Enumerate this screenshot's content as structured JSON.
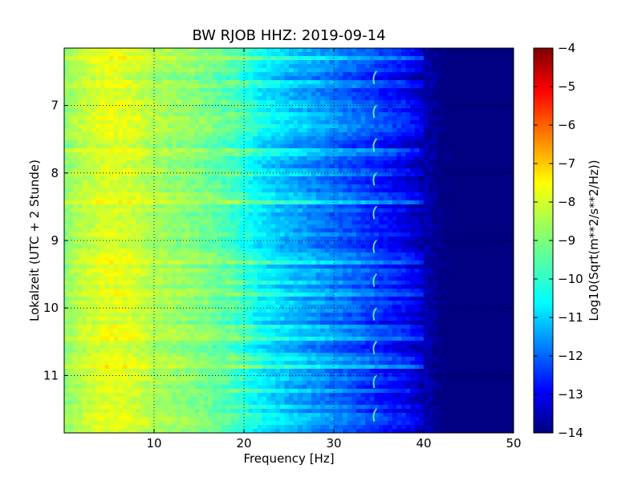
{
  "chart_data": {
    "type": "heatmap",
    "title": "BW RJOB HHZ: 2019-09-14",
    "xlabel": "Frequency [Hz]",
    "ylabel": "Lokalzeit (UTC + 2 Stunde)",
    "xlim": [
      0,
      50
    ],
    "ylim": [
      6.15,
      11.85
    ],
    "y_inverted": true,
    "x_ticks": [
      10,
      20,
      30,
      40,
      50
    ],
    "x_tick_labels": [
      "10",
      "20",
      "30",
      "40",
      "50"
    ],
    "y_ticks": [
      7,
      8,
      9,
      10,
      11
    ],
    "y_tick_labels": [
      "7",
      "8",
      "9",
      "10",
      "11"
    ],
    "grid": true,
    "colormap": "jet",
    "colorbar": {
      "label": "Log10(Sqrt(m**2/s**2/Hz))",
      "range": [
        -14,
        -4
      ],
      "ticks": [
        -4,
        -5,
        -6,
        -7,
        -8,
        -9,
        -10,
        -11,
        -12,
        -13,
        -14
      ],
      "tick_labels": [
        "−4",
        "−5",
        "−6",
        "−7",
        "−8",
        "−9",
        "−10",
        "−11",
        "−12",
        "−13",
        "−14"
      ]
    },
    "spectral_profile": {
      "frequency_hz": [
        0,
        2,
        5,
        8,
        10,
        13,
        16,
        19,
        20,
        22,
        25,
        28,
        30,
        33,
        36,
        38,
        40,
        42,
        50
      ],
      "log10_amplitude": [
        -8.9,
        -8.4,
        -8.0,
        -8.2,
        -8.6,
        -8.8,
        -9.1,
        -9.6,
        -9.9,
        -10.4,
        -10.9,
        -11.3,
        -11.6,
        -12.0,
        -12.5,
        -12.8,
        -13.4,
        -13.8,
        -14.0
      ]
    },
    "features": [
      {
        "frequency_hz": 34.5,
        "description": "recurring short curved traces near 34.5 Hz"
      }
    ]
  }
}
